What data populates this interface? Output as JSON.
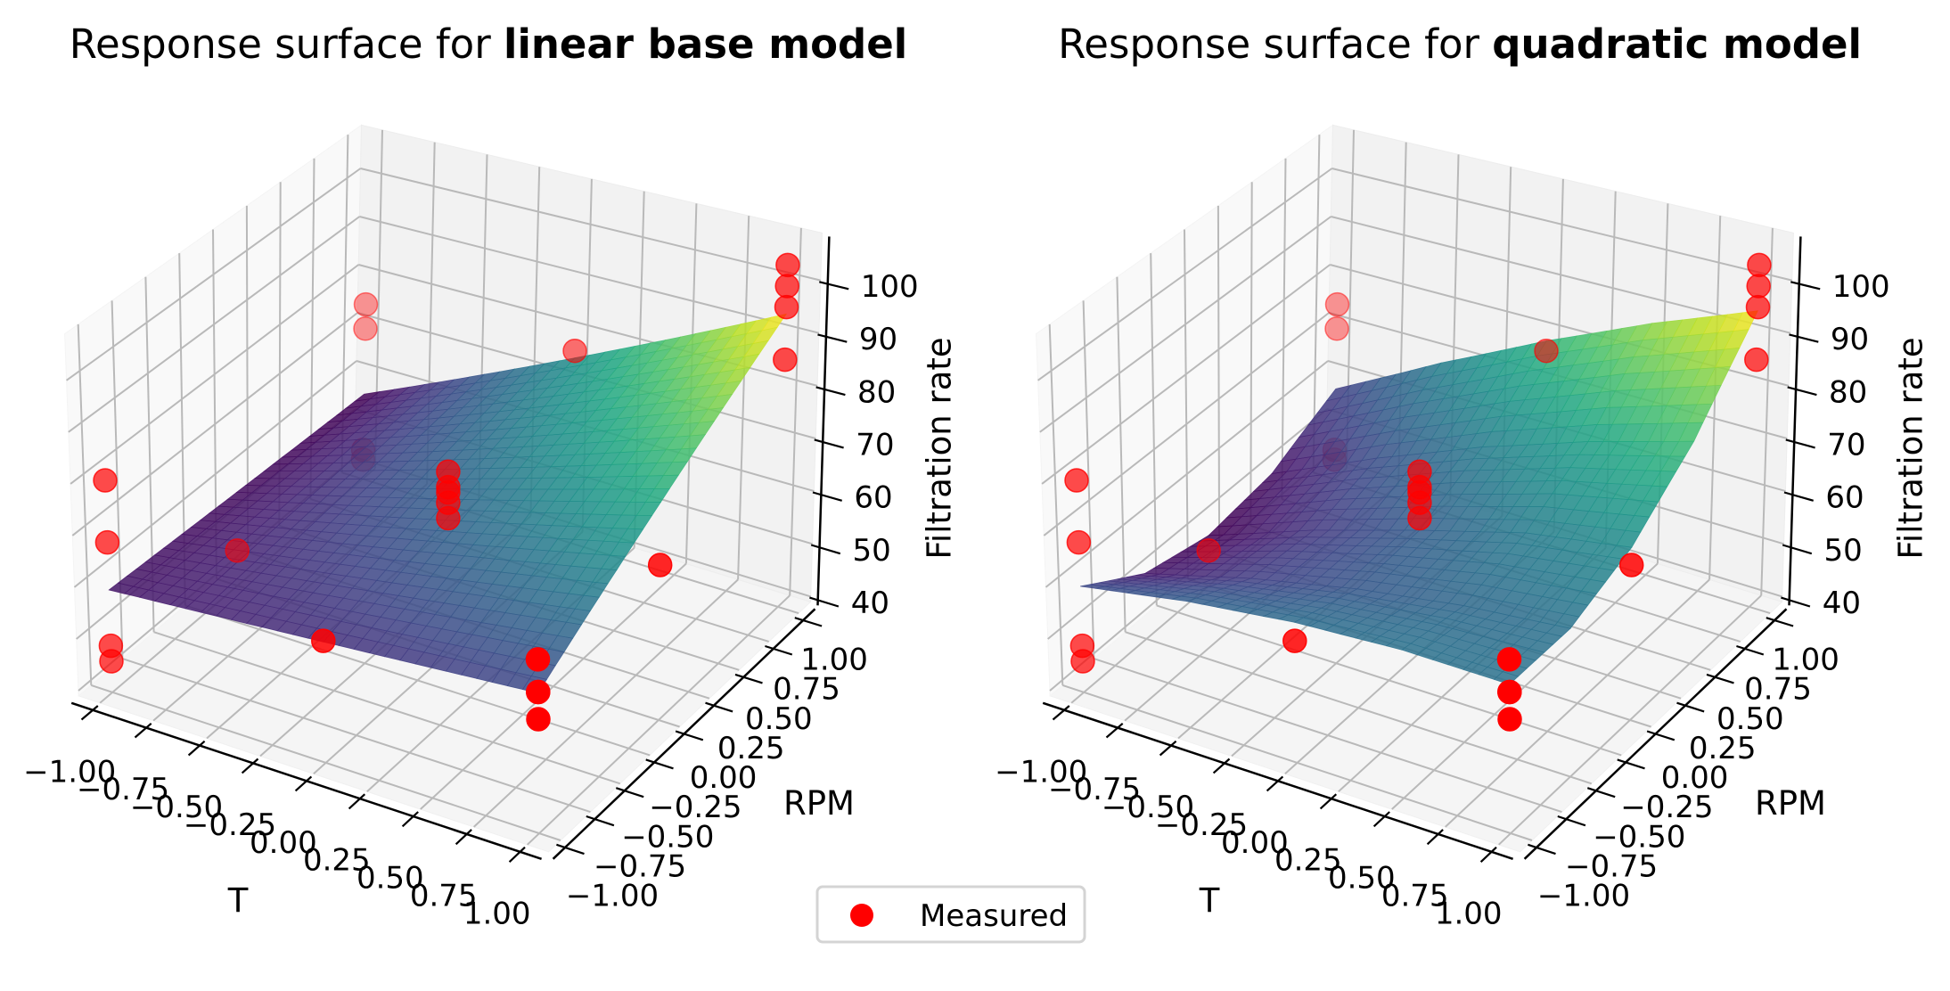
{
  "legend": {
    "label": "Measured",
    "marker_color": "#ff0000",
    "placement": "bottom-center"
  },
  "chart_data": [
    {
      "type": "surface3d",
      "title_prefix": "Response surface for ",
      "title_bold": "linear base model",
      "xlabel": "T",
      "ylabel": "RPM",
      "zlabel": "Filtration rate",
      "xlim": [
        -1.1,
        1.1
      ],
      "ylim": [
        -1.1,
        1.1
      ],
      "zlim": [
        39,
        109
      ],
      "grid": true,
      "colormap": "viridis",
      "xticks": [
        -1,
        -0.75,
        -0.5,
        -0.25,
        0,
        0.25,
        0.5,
        0.75,
        1
      ],
      "xtick_labels": [
        "−1.00",
        "−0.75",
        "−0.50",
        "−0.25",
        "0.00",
        "0.25",
        "0.50",
        "0.75",
        "1.00"
      ],
      "yticks": [
        -1,
        -0.75,
        -0.5,
        -0.25,
        0,
        0.25,
        0.5,
        0.75,
        1
      ],
      "ytick_labels": [
        "−1.00",
        "−0.75",
        "−0.50",
        "−0.25",
        "0.00",
        "0.25",
        "0.50",
        "0.75",
        "1.00"
      ],
      "zticks": [
        40,
        50,
        60,
        70,
        80,
        90,
        100
      ],
      "ztick_labels": [
        "40",
        "50",
        "60",
        "70",
        "80",
        "90",
        "100"
      ],
      "surface": {
        "T": [
          -1,
          1
        ],
        "RPM": [
          -1,
          1
        ],
        "rate": [
          [
            58.8,
            64.8
          ],
          [
            56.5,
            94.7
          ]
        ]
      },
      "points": {
        "name": "Measured",
        "color": "#ff0000",
        "T": [
          -1,
          -1,
          -1,
          -1,
          1,
          1,
          1,
          1,
          -1,
          -1,
          -1,
          -1,
          1,
          1,
          1,
          1,
          0,
          0,
          0,
          0,
          0,
          -1,
          0,
          0,
          1
        ],
        "RPM": [
          -1,
          -1,
          -1,
          -1,
          -1,
          -1,
          -1,
          -1,
          1,
          1,
          1,
          1,
          1,
          1,
          1,
          1,
          0,
          0,
          0,
          0,
          0,
          0,
          -1,
          1,
          0
        ],
        "rate": [
          45,
          48,
          68,
          80,
          71,
          65,
          60,
          65,
          43,
          45,
          75,
          70,
          100,
          104,
          86,
          96,
          74,
          71,
          70,
          68,
          65,
          46,
          62,
          77,
          68
        ]
      }
    },
    {
      "type": "surface3d",
      "title_prefix": "Response surface for ",
      "title_bold": "quadratic model",
      "xlabel": "T",
      "ylabel": "RPM",
      "zlabel": "Filtration rate",
      "xlim": [
        -1.1,
        1.1
      ],
      "ylim": [
        -1.1,
        1.1
      ],
      "zlim": [
        39,
        109
      ],
      "grid": true,
      "colormap": "viridis",
      "xticks": [
        -1,
        -0.75,
        -0.5,
        -0.25,
        0,
        0.25,
        0.5,
        0.75,
        1
      ],
      "xtick_labels": [
        "−1.00",
        "−0.75",
        "−0.50",
        "−0.25",
        "0.00",
        "0.25",
        "0.50",
        "0.75",
        "1.00"
      ],
      "yticks": [
        -1,
        -0.75,
        -0.5,
        -0.25,
        0,
        0.25,
        0.5,
        0.75,
        1
      ],
      "ytick_labels": [
        "−1.00",
        "−0.75",
        "−0.50",
        "−0.25",
        "0.00",
        "0.25",
        "0.50",
        "0.75",
        "1.00"
      ],
      "zticks": [
        40,
        50,
        60,
        70,
        80,
        90,
        100
      ],
      "ztick_labels": [
        "40",
        "50",
        "60",
        "70",
        "80",
        "90",
        "100"
      ],
      "surface": {
        "T": [
          -1,
          -0.5,
          0,
          0.5,
          1
        ],
        "RPM": [
          -1,
          -0.5,
          0,
          0.5,
          1
        ],
        "rate": [
          [
            59.5,
            63.1,
            65.5,
            66.6,
            66.4
          ],
          [
            51.9,
            57.4,
            61.7,
            64.7,
            66.5
          ],
          [
            49.0,
            56.5,
            62.7,
            68.2,
            71.3
          ],
          [
            50.9,
            60.3,
            68.5,
            75.3,
            80.9
          ],
          [
            57.6,
            68.9,
            79.0,
            87.8,
            95.3
          ]
        ]
      },
      "points": {
        "name": "Measured",
        "color": "#ff0000",
        "T": [
          -1,
          -1,
          -1,
          -1,
          1,
          1,
          1,
          1,
          -1,
          -1,
          -1,
          -1,
          1,
          1,
          1,
          1,
          0,
          0,
          0,
          0,
          0,
          -1,
          0,
          0,
          1
        ],
        "RPM": [
          -1,
          -1,
          -1,
          -1,
          -1,
          -1,
          -1,
          -1,
          1,
          1,
          1,
          1,
          1,
          1,
          1,
          1,
          0,
          0,
          0,
          0,
          0,
          0,
          -1,
          1,
          0
        ],
        "rate": [
          45,
          48,
          68,
          80,
          71,
          65,
          60,
          65,
          43,
          45,
          75,
          70,
          100,
          104,
          86,
          96,
          74,
          71,
          70,
          68,
          65,
          46,
          62,
          77,
          68
        ]
      }
    }
  ]
}
